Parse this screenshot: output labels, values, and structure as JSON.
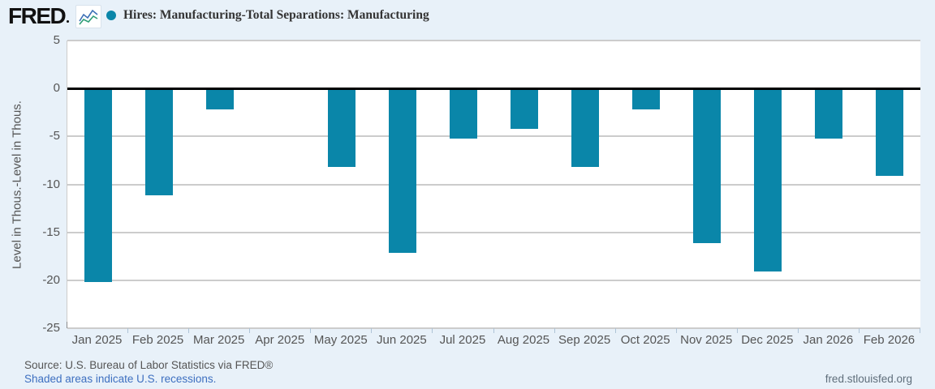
{
  "header": {
    "logo_text": "FRED",
    "series_title": "Hires: Manufacturing-Total Separations: Manufacturing"
  },
  "chart_data": {
    "type": "bar",
    "title": "Hires: Manufacturing-Total Separations: Manufacturing",
    "categories": [
      "Jan 2025",
      "Feb 2025",
      "Mar 2025",
      "Apr 2025",
      "May 2025",
      "Jun 2025",
      "Jul 2025",
      "Aug 2025",
      "Sep 2025",
      "Oct 2025",
      "Nov 2025",
      "Dec 2025",
      "Jan 2026",
      "Feb 2026"
    ],
    "values": [
      -20.2,
      -11.1,
      -2.2,
      0,
      -8.2,
      -17.1,
      -5.2,
      -4.2,
      -8.2,
      -2.2,
      -16.1,
      -19.1,
      -5.2,
      -9.1
    ],
    "xlabel": "",
    "ylabel": "Level in Thous.-Level in Thous.",
    "ylim": [
      -25,
      5
    ],
    "yticks": [
      5,
      0,
      -5,
      -10,
      -15,
      -20,
      -25
    ],
    "grid": true,
    "legend_position": "top-left",
    "bar_color": "#0a86a9",
    "zero_line_color": "#000000",
    "gridline_color": "#cccccc"
  },
  "footer": {
    "source_text": "Source: U.S. Bureau of Labor Statistics via FRED®",
    "recession_note": "Shaded areas indicate U.S. recessions.",
    "site_link": "fred.stlouisfed.org"
  },
  "colors": {
    "accent_teal": "#0a86a9",
    "link_blue": "#3d6fc0",
    "page_background": "#e8f1f9",
    "plot_background": "#ffffff",
    "text_gray": "#555555"
  }
}
